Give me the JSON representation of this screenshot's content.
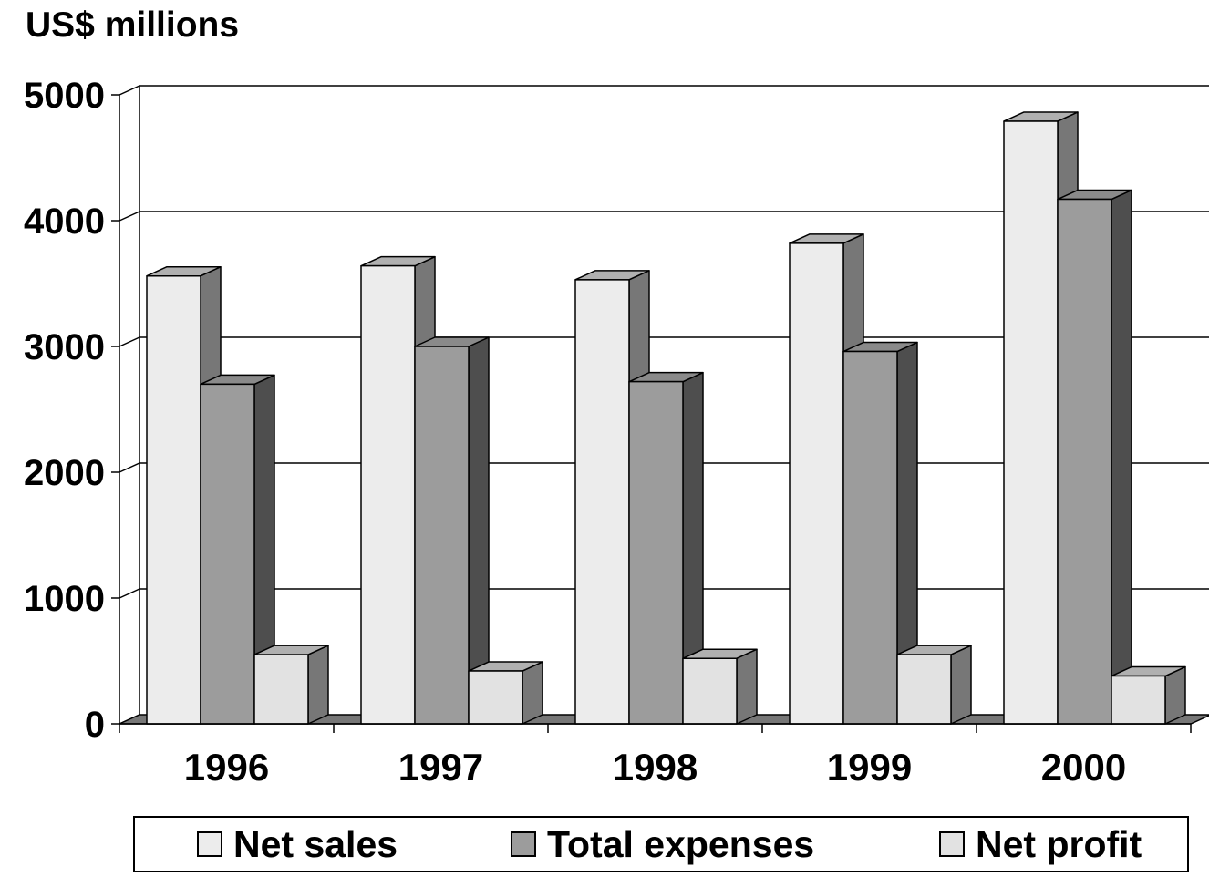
{
  "chart_data": {
    "type": "bar",
    "style": "3d-clustered-column",
    "unit_label": "US$ millions",
    "categories": [
      "1996",
      "1997",
      "1998",
      "1999",
      "2000"
    ],
    "series": [
      {
        "name": "Net sales",
        "values": [
          3560,
          3640,
          3530,
          3820,
          4790
        ],
        "color": "#ececec"
      },
      {
        "name": "Total expenses",
        "values": [
          2700,
          3000,
          2720,
          2960,
          4170
        ],
        "color": "#9c9c9c"
      },
      {
        "name": "Net profit",
        "values": [
          550,
          420,
          520,
          550,
          380
        ],
        "color": "#e2e2e2"
      }
    ],
    "y_ticks": [
      "0",
      "1000",
      "2000",
      "3000",
      "4000",
      "5000"
    ],
    "ylim": [
      0,
      5000
    ],
    "grid": true,
    "legend_position": "bottom"
  }
}
